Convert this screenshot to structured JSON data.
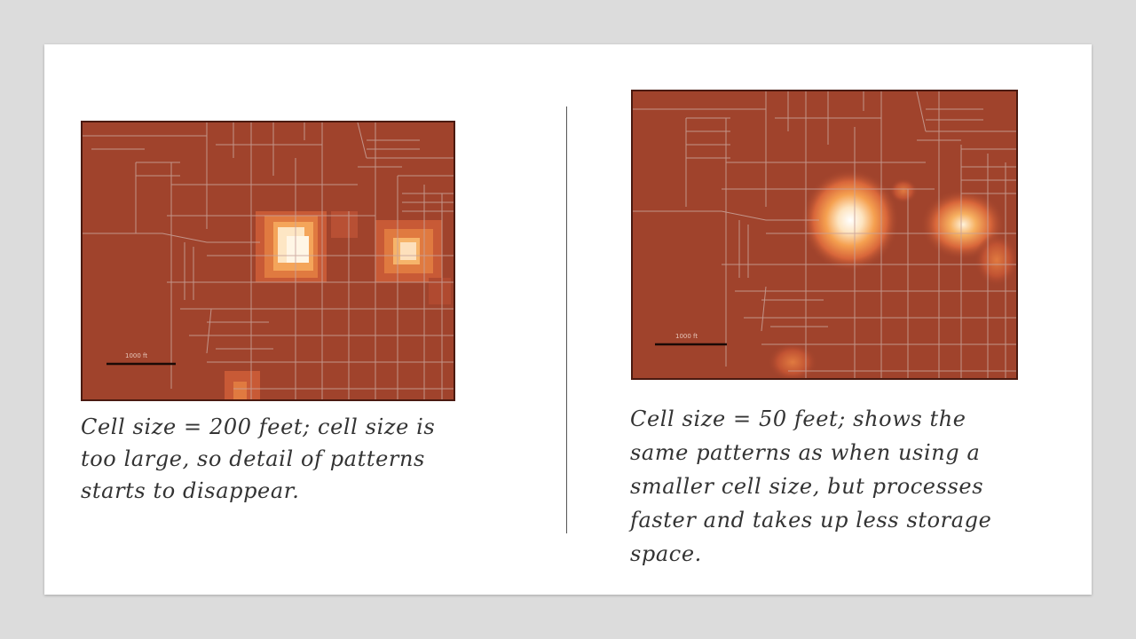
{
  "slide": {
    "left_figure": {
      "scale_label": "1000 ft",
      "caption": "Cell size = 200 feet; cell size is\ntoo large, so detail of patterns\nstarts to disappear."
    },
    "right_figure": {
      "scale_label": "1000 ft",
      "caption": "Cell size = 50 feet; shows the\nsame patterns as when using a\nsmaller cell size, but processes\nfaster and takes up less storage\nspace."
    }
  },
  "colors": {
    "map_background": "#a0432c",
    "street_lines": "#c9a39a",
    "hotspot_core": "#fff6e6",
    "hotspot_glow": "#f08a40"
  }
}
